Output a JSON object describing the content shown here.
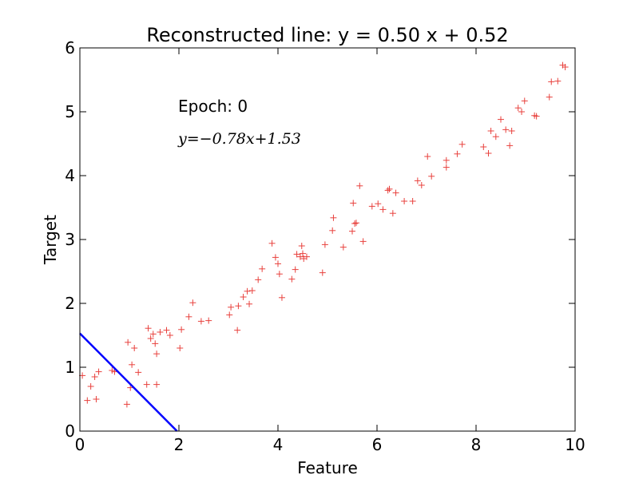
{
  "chart_data": {
    "type": "scatter",
    "title": "Reconstructed line: y = 0.50 x + 0.52",
    "xlabel": "Feature",
    "ylabel": "Target",
    "xlim": [
      0,
      10
    ],
    "ylim": [
      0,
      6
    ],
    "xticks": [
      0,
      2,
      4,
      6,
      8,
      10
    ],
    "yticks": [
      0,
      1,
      2,
      3,
      4,
      5,
      6
    ],
    "grid": false,
    "annotations": {
      "epoch_text": "Epoch: 0",
      "equation_text": "y=−0.78x+1.53"
    },
    "colors": {
      "points": "#e8413d",
      "fit_line": "#0000ff"
    },
    "series": [
      {
        "type": "scatter",
        "marker": "+",
        "points": [
          [
            0.05,
            0.87
          ],
          [
            0.15,
            0.48
          ],
          [
            0.22,
            0.7
          ],
          [
            0.3,
            0.85
          ],
          [
            0.33,
            0.5
          ],
          [
            0.38,
            0.93
          ],
          [
            0.65,
            0.95
          ],
          [
            0.7,
            0.93
          ],
          [
            0.95,
            0.42
          ],
          [
            0.97,
            1.39
          ],
          [
            1.02,
            0.68
          ],
          [
            1.05,
            1.04
          ],
          [
            1.1,
            1.3
          ],
          [
            1.18,
            0.92
          ],
          [
            1.35,
            0.73
          ],
          [
            1.38,
            1.61
          ],
          [
            1.43,
            1.45
          ],
          [
            1.48,
            1.52
          ],
          [
            1.52,
            1.37
          ],
          [
            1.55,
            1.21
          ],
          [
            1.55,
            0.73
          ],
          [
            1.62,
            1.55
          ],
          [
            1.75,
            1.58
          ],
          [
            1.82,
            1.5
          ],
          [
            2.02,
            1.3
          ],
          [
            2.05,
            1.59
          ],
          [
            2.2,
            1.79
          ],
          [
            2.28,
            2.01
          ],
          [
            2.45,
            1.72
          ],
          [
            2.6,
            1.73
          ],
          [
            3.02,
            1.82
          ],
          [
            3.05,
            1.94
          ],
          [
            3.18,
            1.58
          ],
          [
            3.2,
            1.96
          ],
          [
            3.3,
            2.1
          ],
          [
            3.38,
            2.19
          ],
          [
            3.42,
            1.99
          ],
          [
            3.48,
            2.2
          ],
          [
            3.6,
            2.37
          ],
          [
            3.68,
            2.54
          ],
          [
            3.88,
            2.94
          ],
          [
            3.95,
            2.72
          ],
          [
            4.0,
            2.62
          ],
          [
            4.03,
            2.46
          ],
          [
            4.08,
            2.09
          ],
          [
            4.28,
            2.38
          ],
          [
            4.35,
            2.53
          ],
          [
            4.38,
            2.77
          ],
          [
            4.45,
            2.73
          ],
          [
            4.48,
            2.9
          ],
          [
            4.5,
            2.78
          ],
          [
            4.52,
            2.7
          ],
          [
            4.58,
            2.73
          ],
          [
            4.9,
            2.48
          ],
          [
            4.95,
            2.92
          ],
          [
            5.1,
            3.14
          ],
          [
            5.12,
            3.34
          ],
          [
            5.32,
            2.88
          ],
          [
            5.5,
            3.13
          ],
          [
            5.52,
            3.57
          ],
          [
            5.55,
            3.25
          ],
          [
            5.58,
            3.26
          ],
          [
            5.65,
            3.84
          ],
          [
            5.72,
            2.97
          ],
          [
            5.9,
            3.52
          ],
          [
            6.02,
            3.56
          ],
          [
            6.12,
            3.47
          ],
          [
            6.22,
            3.77
          ],
          [
            6.25,
            3.79
          ],
          [
            6.32,
            3.41
          ],
          [
            6.38,
            3.73
          ],
          [
            6.55,
            3.6
          ],
          [
            6.72,
            3.6
          ],
          [
            6.82,
            3.92
          ],
          [
            6.9,
            3.85
          ],
          [
            7.02,
            4.3
          ],
          [
            7.1,
            3.99
          ],
          [
            7.4,
            4.13
          ],
          [
            7.4,
            4.24
          ],
          [
            7.62,
            4.34
          ],
          [
            7.72,
            4.49
          ],
          [
            8.15,
            4.45
          ],
          [
            8.25,
            4.35
          ],
          [
            8.3,
            4.7
          ],
          [
            8.4,
            4.61
          ],
          [
            8.5,
            4.88
          ],
          [
            8.6,
            4.72
          ],
          [
            8.68,
            4.47
          ],
          [
            8.72,
            4.7
          ],
          [
            8.85,
            5.06
          ],
          [
            8.92,
            5.0
          ],
          [
            8.98,
            5.17
          ],
          [
            9.18,
            4.94
          ],
          [
            9.22,
            4.93
          ],
          [
            9.48,
            5.23
          ],
          [
            9.52,
            5.47
          ],
          [
            9.65,
            5.48
          ],
          [
            9.75,
            5.73
          ],
          [
            9.8,
            5.7
          ]
        ]
      },
      {
        "type": "line",
        "slope": -0.78,
        "intercept": 1.53,
        "x_range": [
          0,
          1.9615
        ]
      }
    ]
  }
}
